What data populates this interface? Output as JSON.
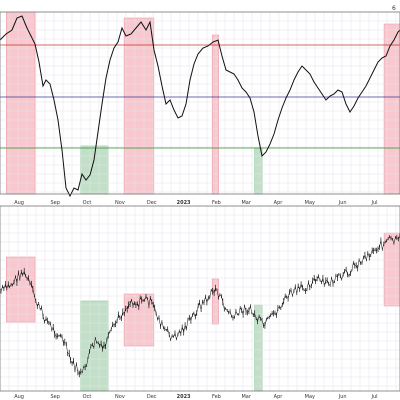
{
  "chart_data": [
    {
      "type": "line",
      "panel": "indicator",
      "title": "",
      "xlabel": "",
      "ylabel": "",
      "x_ticks": [
        "Aug",
        "Sep",
        "Oct",
        "Nov",
        "Dec",
        "2023",
        "Feb",
        "Mar",
        "Apr",
        "May",
        "Jun",
        "Jul"
      ],
      "corner_label": "6",
      "grid": true,
      "reference_lines": [
        {
          "level": "upper",
          "color": "#c0392b"
        },
        {
          "level": "middle",
          "color": "#3a3a9a"
        },
        {
          "level": "lower",
          "color": "#2e8b2e"
        }
      ],
      "line_color": "#111111",
      "shaded_periods": [
        {
          "kind": "overbought",
          "color": "#f29aa6",
          "from": "2022-07-22",
          "to": "2022-08-18"
        },
        {
          "kind": "oversold",
          "color": "#8fc79a",
          "from": "2022-09-30",
          "to": "2022-10-26"
        },
        {
          "kind": "overbought",
          "color": "#f29aa6",
          "from": "2022-11-10",
          "to": "2022-12-08"
        },
        {
          "kind": "overbought",
          "color": "#f29aa6",
          "from": "2023-02-01",
          "to": "2023-02-07"
        },
        {
          "kind": "oversold",
          "color": "#8fc79a",
          "from": "2023-03-13",
          "to": "2023-03-20"
        },
        {
          "kind": "overbought",
          "color": "#f29aa6",
          "from": "2023-07-13",
          "to": "2023-07-31"
        }
      ]
    },
    {
      "type": "line",
      "panel": "price",
      "title": "",
      "xlabel": "",
      "ylabel": "",
      "x_ticks": [
        "Aug",
        "Sep",
        "Oct",
        "Nov",
        "Dec",
        "2023",
        "Feb",
        "Mar",
        "Apr",
        "May",
        "Jun",
        "Jul"
      ],
      "grid": true,
      "line_color": "#111111"
    }
  ]
}
